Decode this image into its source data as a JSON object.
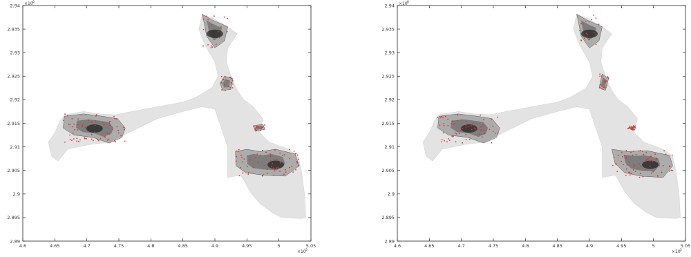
{
  "chart_data": [
    {
      "type": "area",
      "x_ticks": [
        "4.6",
        "4.65",
        "4.7",
        "4.75",
        "4.8",
        "4.85",
        "4.9",
        "4.95",
        "5",
        "5.05"
      ],
      "y_ticks": [
        "2.89",
        "2.895",
        "2.9",
        "2.905",
        "2.91",
        "2.915",
        "2.92",
        "2.925",
        "2.93",
        "2.935",
        "2.94"
      ],
      "x_tick_values": [
        460000,
        465000,
        470000,
        475000,
        480000,
        485000,
        490000,
        495000,
        500000,
        505000
      ],
      "y_tick_values": [
        2890000,
        2895000,
        2900000,
        2905000,
        2910000,
        2915000,
        2920000,
        2925000,
        2930000,
        2935000,
        2940000
      ],
      "xlim": [
        460000,
        505000
      ],
      "ylim": [
        2890000,
        2940000
      ],
      "x_multiplier": "×10",
      "x_exponent": "5",
      "y_multiplier": "×10",
      "y_exponent": "6",
      "grid": false,
      "colors": {
        "region": "#e3e3e3",
        "cluster": "#444444",
        "points": "#e53030"
      },
      "outline": [
        [
          464000,
          2911000
        ],
        [
          465000,
          2913000
        ],
        [
          465800,
          2915500
        ],
        [
          466500,
          2916800
        ],
        [
          469500,
          2917500
        ],
        [
          472000,
          2917000
        ],
        [
          474500,
          2916800
        ],
        [
          477000,
          2917500
        ],
        [
          481000,
          2918500
        ],
        [
          485000,
          2919500
        ],
        [
          487000,
          2920500
        ],
        [
          489500,
          2922500
        ],
        [
          490500,
          2925000
        ],
        [
          490000,
          2928000
        ],
        [
          488500,
          2931500
        ],
        [
          487500,
          2935000
        ],
        [
          488000,
          2938000
        ],
        [
          489500,
          2937500
        ],
        [
          492000,
          2935500
        ],
        [
          493500,
          2934000
        ],
        [
          492000,
          2931000
        ],
        [
          491800,
          2928000
        ],
        [
          492500,
          2925000
        ],
        [
          493500,
          2922000
        ],
        [
          494500,
          2920000
        ],
        [
          496000,
          2918500
        ],
        [
          497500,
          2916000
        ],
        [
          497000,
          2913000
        ],
        [
          498500,
          2911000
        ],
        [
          501500,
          2909500
        ],
        [
          503000,
          2908000
        ],
        [
          503500,
          2905000
        ],
        [
          504000,
          2900000
        ],
        [
          504200,
          2895000
        ],
        [
          503500,
          2894800
        ],
        [
          500500,
          2895000
        ],
        [
          499000,
          2896000
        ],
        [
          497000,
          2898000
        ],
        [
          495500,
          2900500
        ],
        [
          494500,
          2903000
        ],
        [
          494000,
          2904000
        ],
        [
          492000,
          2903500
        ],
        [
          492000,
          2910000
        ],
        [
          491000,
          2914000
        ],
        [
          490000,
          2918000
        ],
        [
          488000,
          2918500
        ],
        [
          485000,
          2917500
        ],
        [
          481000,
          2916000
        ],
        [
          478000,
          2914000
        ],
        [
          475000,
          2912000
        ],
        [
          473500,
          2911000
        ],
        [
          470500,
          2910500
        ],
        [
          467000,
          2909500
        ],
        [
          465500,
          2907000
        ],
        [
          464500,
          2908000
        ]
      ],
      "clusters": [
        [
          [
            466500,
            2916500
          ],
          [
            469500,
            2917000
          ],
          [
            472500,
            2916500
          ],
          [
            474800,
            2916000
          ],
          [
            476000,
            2914000
          ],
          [
            475500,
            2912000
          ],
          [
            473500,
            2910800
          ],
          [
            471000,
            2912000
          ],
          [
            468000,
            2912500
          ],
          [
            466300,
            2914000
          ]
        ],
        [
          [
            488000,
            2938200
          ],
          [
            489500,
            2937000
          ],
          [
            492000,
            2935500
          ],
          [
            491500,
            2932500
          ],
          [
            490000,
            2931000
          ],
          [
            488700,
            2933500
          ],
          [
            488300,
            2936500
          ]
        ],
        [
          [
            491500,
            2925000
          ],
          [
            492800,
            2924500
          ],
          [
            492500,
            2922200
          ],
          [
            491200,
            2922000
          ],
          [
            490800,
            2923500
          ]
        ],
        [
          [
            493200,
            2909000
          ],
          [
            495000,
            2909500
          ],
          [
            497000,
            2909000
          ],
          [
            499500,
            2909500
          ],
          [
            502500,
            2908500
          ],
          [
            503200,
            2906000
          ],
          [
            501000,
            2903800
          ],
          [
            497500,
            2904000
          ],
          [
            494800,
            2904500
          ],
          [
            493300,
            2906000
          ]
        ],
        [
          [
            496000,
            2914500
          ],
          [
            497500,
            2914800
          ],
          [
            497800,
            2913800
          ],
          [
            496300,
            2913300
          ]
        ]
      ],
      "dense_spots": [
        [
          471200,
          2913900
        ],
        [
          499500,
          2906200
        ],
        [
          490000,
          2934000
        ]
      ]
    },
    {
      "type": "area",
      "x_ticks": [
        "4.6",
        "4.65",
        "4.7",
        "4.75",
        "4.8",
        "4.85",
        "4.9",
        "4.95",
        "5",
        "5.05"
      ],
      "y_ticks": [
        "2.89",
        "2.895",
        "2.9",
        "2.905",
        "2.91",
        "2.915",
        "2.92",
        "2.925",
        "2.93",
        "2.935",
        "2.94"
      ],
      "x_tick_values": [
        460000,
        465000,
        470000,
        475000,
        480000,
        485000,
        490000,
        495000,
        500000,
        505000
      ],
      "y_tick_values": [
        2890000,
        2895000,
        2900000,
        2905000,
        2910000,
        2915000,
        2920000,
        2925000,
        2930000,
        2935000,
        2940000
      ],
      "xlim": [
        460000,
        505000
      ],
      "ylim": [
        2890000,
        2940000
      ],
      "x_multiplier": "×10",
      "x_exponent": "5",
      "y_multiplier": "×10",
      "y_exponent": "6",
      "grid": false,
      "colors": {
        "region": "#e3e3e3",
        "cluster": "#444444",
        "points": "#e53030"
      },
      "outline": [
        [
          464000,
          2911000
        ],
        [
          465000,
          2913000
        ],
        [
          465800,
          2915500
        ],
        [
          466500,
          2916800
        ],
        [
          469500,
          2917500
        ],
        [
          472000,
          2917000
        ],
        [
          474500,
          2916800
        ],
        [
          477000,
          2917500
        ],
        [
          481000,
          2918500
        ],
        [
          485000,
          2919500
        ],
        [
          487000,
          2920500
        ],
        [
          489500,
          2922500
        ],
        [
          490500,
          2925000
        ],
        [
          490000,
          2928000
        ],
        [
          488500,
          2931500
        ],
        [
          487500,
          2935000
        ],
        [
          488000,
          2938000
        ],
        [
          489500,
          2937500
        ],
        [
          492000,
          2935500
        ],
        [
          493500,
          2934000
        ],
        [
          492000,
          2931000
        ],
        [
          491800,
          2928000
        ],
        [
          492500,
          2925000
        ],
        [
          493500,
          2922000
        ],
        [
          494500,
          2920000
        ],
        [
          496000,
          2918500
        ],
        [
          497500,
          2916000
        ],
        [
          497000,
          2913000
        ],
        [
          498500,
          2911000
        ],
        [
          501500,
          2909500
        ],
        [
          503000,
          2908000
        ],
        [
          503500,
          2905000
        ],
        [
          504000,
          2900000
        ],
        [
          504200,
          2895000
        ],
        [
          503500,
          2894800
        ],
        [
          500500,
          2895000
        ],
        [
          499000,
          2896000
        ],
        [
          497000,
          2898000
        ],
        [
          495500,
          2900500
        ],
        [
          494500,
          2903000
        ],
        [
          494000,
          2904000
        ],
        [
          492000,
          2903500
        ],
        [
          492000,
          2910000
        ],
        [
          491000,
          2914000
        ],
        [
          490000,
          2918000
        ],
        [
          488000,
          2918500
        ],
        [
          485000,
          2917500
        ],
        [
          481000,
          2916000
        ],
        [
          478000,
          2914000
        ],
        [
          475000,
          2912000
        ],
        [
          473500,
          2911000
        ],
        [
          470500,
          2910500
        ],
        [
          467000,
          2909500
        ],
        [
          465500,
          2907000
        ],
        [
          464500,
          2908000
        ]
      ],
      "clusters": [
        [
          [
            466500,
            2916500
          ],
          [
            469500,
            2917000
          ],
          [
            472500,
            2916500
          ],
          [
            474800,
            2916000
          ],
          [
            476000,
            2914000
          ],
          [
            475500,
            2912000
          ],
          [
            473500,
            2910800
          ],
          [
            471000,
            2912000
          ],
          [
            468000,
            2912500
          ],
          [
            466300,
            2914000
          ]
        ],
        [
          [
            488000,
            2938200
          ],
          [
            489500,
            2937000
          ],
          [
            492000,
            2935500
          ],
          [
            491500,
            2932500
          ],
          [
            490000,
            2931000
          ],
          [
            488700,
            2933500
          ],
          [
            488300,
            2936500
          ]
        ],
        [
          [
            492000,
            2925500
          ],
          [
            493000,
            2924500
          ],
          [
            492500,
            2922000
          ],
          [
            491500,
            2922500
          ]
        ],
        [
          [
            493500,
            2909500
          ],
          [
            496000,
            2909000
          ],
          [
            499000,
            2909200
          ],
          [
            502500,
            2908200
          ],
          [
            503000,
            2906000
          ],
          [
            501500,
            2903500
          ],
          [
            498000,
            2903800
          ],
          [
            495500,
            2904500
          ],
          [
            494000,
            2906500
          ]
        ],
        [
          [
            496000,
            2914000
          ],
          [
            497200,
            2914500
          ],
          [
            496800,
            2913500
          ]
        ]
      ],
      "dense_spots": [
        [
          471200,
          2913900
        ],
        [
          499500,
          2906200
        ],
        [
          490000,
          2934000
        ]
      ]
    }
  ]
}
